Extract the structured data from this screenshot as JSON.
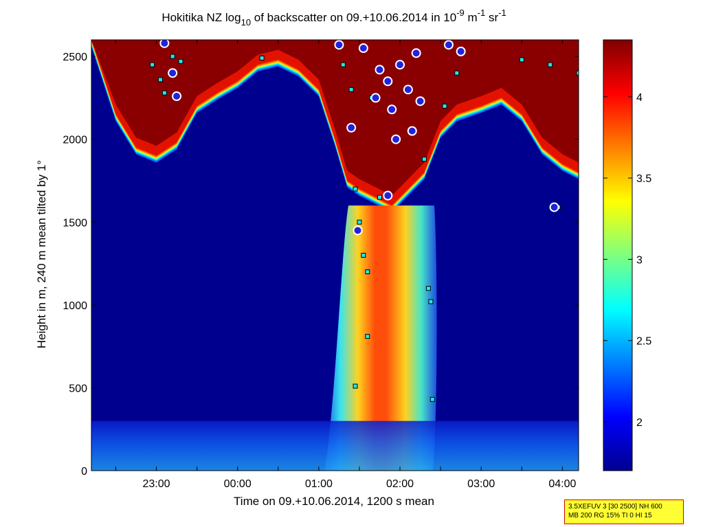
{
  "chart_data": {
    "type": "heatmap",
    "title": {
      "prefix": "Hokitika NZ log",
      "sub": "10",
      "middle": " of backscatter on 09.+10.06.2014 in 10",
      "sup1": "-9",
      "unit1": " m",
      "sup2": "-1",
      "unit2": " sr",
      "sup3": "-1"
    },
    "xlabel": "Time on 09.+10.06.2014, 1200 s mean",
    "ylabel": "Height in m, 240 m mean tilted by 1°",
    "x_ticks": [
      "23:00",
      "00:00",
      "01:00",
      "02:00",
      "03:00",
      "04:00"
    ],
    "x_range_hours": [
      22.2,
      28.2
    ],
    "x_tick_hours": [
      23,
      24,
      25,
      26,
      27,
      28
    ],
    "y_ticks": [
      0,
      500,
      1000,
      1500,
      2000,
      2500
    ],
    "ylim": [
      0,
      2600
    ],
    "colorbar": {
      "ticks": [
        "2",
        "2.5",
        "3",
        "3.5",
        "4"
      ],
      "tick_values": [
        2,
        2.5,
        3,
        3.5,
        4
      ],
      "range": [
        1.7,
        4.35
      ],
      "colormap": "jet"
    },
    "cloud_top_profile": {
      "time_h": [
        22.2,
        22.5,
        22.75,
        23.0,
        23.25,
        23.5,
        23.75,
        24.0,
        24.25,
        24.5,
        24.75,
        25.0,
        25.2,
        25.35,
        25.5,
        25.7,
        25.9,
        26.1,
        26.3,
        26.5,
        26.7,
        27.0,
        27.25,
        27.5,
        27.75,
        28.0,
        28.2
      ],
      "base_m": [
        2600,
        2150,
        1950,
        1900,
        1980,
        2200,
        2280,
        2350,
        2450,
        2480,
        2420,
        2300,
        2000,
        1750,
        1700,
        1650,
        1600,
        1700,
        1800,
        2050,
        2150,
        2200,
        2250,
        2150,
        1950,
        1850,
        1800
      ]
    },
    "plume": {
      "time_h_center": 26.0,
      "top_m": 1600,
      "bottom_m": 0,
      "peak_log_backscatter": 4.2
    },
    "surface_layer_top_m": 300,
    "markers": [
      {
        "time_h": 22.95,
        "height_m": 2450,
        "kind": "cloud-base"
      },
      {
        "time_h": 23.05,
        "height_m": 2360,
        "kind": "cloud-base"
      },
      {
        "time_h": 23.1,
        "height_m": 2280,
        "kind": "cloud-base"
      },
      {
        "time_h": 23.2,
        "height_m": 2500,
        "kind": "cloud-base"
      },
      {
        "time_h": 23.3,
        "height_m": 2470,
        "kind": "cloud-base"
      },
      {
        "time_h": 24.3,
        "height_m": 2490,
        "kind": "cloud-base"
      },
      {
        "time_h": 25.3,
        "height_m": 2450,
        "kind": "cloud-base"
      },
      {
        "time_h": 25.4,
        "height_m": 2300,
        "kind": "cloud-base"
      },
      {
        "time_h": 25.45,
        "height_m": 1700,
        "kind": "cloud-base"
      },
      {
        "time_h": 25.5,
        "height_m": 1500,
        "kind": "cloud-base"
      },
      {
        "time_h": 25.55,
        "height_m": 1300,
        "kind": "cloud-base"
      },
      {
        "time_h": 25.6,
        "height_m": 1200,
        "kind": "cloud-base"
      },
      {
        "time_h": 25.6,
        "height_m": 810,
        "kind": "cloud-base"
      },
      {
        "time_h": 25.45,
        "height_m": 510,
        "kind": "cloud-base"
      },
      {
        "time_h": 25.65,
        "height_m": 2250,
        "kind": "cloud-base"
      },
      {
        "time_h": 25.75,
        "height_m": 1650,
        "kind": "cloud-base"
      },
      {
        "time_h": 26.3,
        "height_m": 1880,
        "kind": "cloud-base"
      },
      {
        "time_h": 26.35,
        "height_m": 1100,
        "kind": "cloud-base"
      },
      {
        "time_h": 26.38,
        "height_m": 1020,
        "kind": "cloud-base"
      },
      {
        "time_h": 26.4,
        "height_m": 430,
        "kind": "cloud-base"
      },
      {
        "time_h": 26.55,
        "height_m": 2200,
        "kind": "cloud-base"
      },
      {
        "time_h": 26.7,
        "height_m": 2400,
        "kind": "cloud-base"
      },
      {
        "time_h": 27.5,
        "height_m": 2480,
        "kind": "cloud-base"
      },
      {
        "time_h": 27.85,
        "height_m": 2450,
        "kind": "cloud-base"
      },
      {
        "time_h": 27.95,
        "height_m": 1590,
        "kind": "cloud-base"
      },
      {
        "time_h": 28.2,
        "height_m": 2400,
        "kind": "cloud-base"
      },
      {
        "time_h": 23.1,
        "height_m": 2580,
        "kind": "cloud-top"
      },
      {
        "time_h": 23.2,
        "height_m": 2400,
        "kind": "cloud-top"
      },
      {
        "time_h": 23.25,
        "height_m": 2260,
        "kind": "cloud-top"
      },
      {
        "time_h": 25.25,
        "height_m": 2570,
        "kind": "cloud-top"
      },
      {
        "time_h": 25.4,
        "height_m": 2070,
        "kind": "cloud-top"
      },
      {
        "time_h": 25.55,
        "height_m": 2550,
        "kind": "cloud-top"
      },
      {
        "time_h": 25.7,
        "height_m": 2250,
        "kind": "cloud-top"
      },
      {
        "time_h": 25.85,
        "height_m": 2350,
        "kind": "cloud-top"
      },
      {
        "time_h": 25.9,
        "height_m": 2180,
        "kind": "cloud-top"
      },
      {
        "time_h": 25.95,
        "height_m": 2000,
        "kind": "cloud-top"
      },
      {
        "time_h": 26.0,
        "height_m": 2450,
        "kind": "cloud-top"
      },
      {
        "time_h": 26.1,
        "height_m": 2300,
        "kind": "cloud-top"
      },
      {
        "time_h": 26.15,
        "height_m": 2050,
        "kind": "cloud-top"
      },
      {
        "time_h": 26.2,
        "height_m": 2520,
        "kind": "cloud-top"
      },
      {
        "time_h": 25.85,
        "height_m": 1660,
        "kind": "cloud-top"
      },
      {
        "time_h": 26.25,
        "height_m": 2230,
        "kind": "cloud-top"
      },
      {
        "time_h": 25.75,
        "height_m": 2420,
        "kind": "cloud-top"
      },
      {
        "time_h": 26.6,
        "height_m": 2570,
        "kind": "cloud-top"
      },
      {
        "time_h": 26.75,
        "height_m": 2530,
        "kind": "cloud-top"
      },
      {
        "time_h": 25.48,
        "height_m": 1450,
        "kind": "cloud-top"
      },
      {
        "time_h": 27.9,
        "height_m": 1590,
        "kind": "cloud-top"
      }
    ]
  },
  "info_box": {
    "line1": "3.5XEFUV 3 [30 2500] NH 600",
    "line2": "MB 200 RG 15% TI 0 HI 15"
  }
}
